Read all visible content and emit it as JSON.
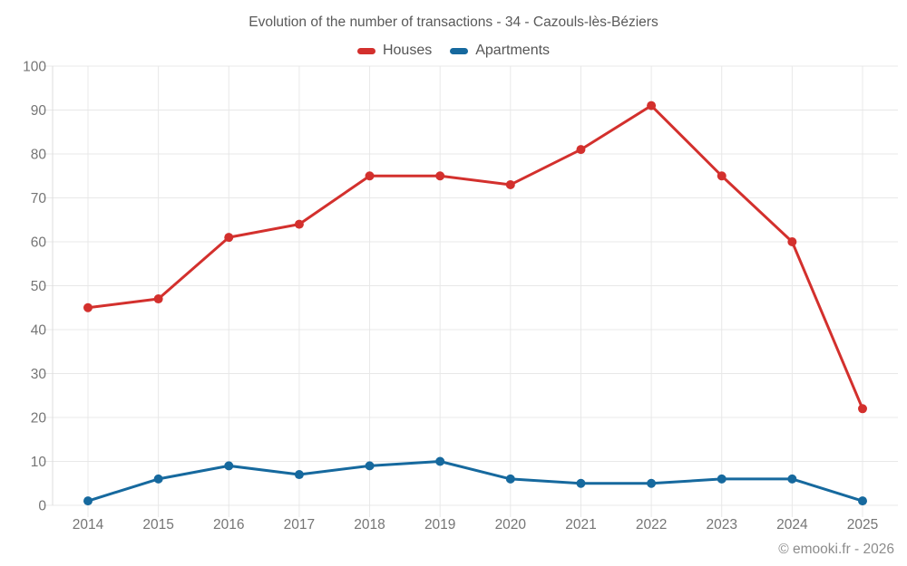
{
  "title": "Evolution of the number of transactions - 34 - Cazouls-lès-Béziers",
  "legend": {
    "items": [
      {
        "label": "Houses",
        "color": "#d3302d"
      },
      {
        "label": "Apartments",
        "color": "#16699e"
      }
    ]
  },
  "footer": {
    "copyright": "© emooki.fr - 2026"
  },
  "colors": {
    "background": "#ffffff",
    "grid": "#e8e8e8",
    "axis": "#dcdcdc",
    "tick_label": "#757575",
    "title_text": "#595959",
    "footer_text": "#8c8c8c",
    "houses": "#d3302d",
    "apartments": "#16699e"
  },
  "chart_data": {
    "type": "line",
    "title": "Evolution of the number of transactions - 34 - Cazouls-lès-Béziers",
    "categories": [
      "2014",
      "2015",
      "2016",
      "2017",
      "2018",
      "2019",
      "2020",
      "2021",
      "2022",
      "2023",
      "2024",
      "2025"
    ],
    "series": [
      {
        "name": "Houses",
        "color": "#d3302d",
        "values": [
          45,
          47,
          61,
          64,
          75,
          75,
          73,
          81,
          91,
          75,
          60,
          22
        ]
      },
      {
        "name": "Apartments",
        "color": "#16699e",
        "values": [
          1,
          6,
          9,
          7,
          9,
          10,
          6,
          5,
          5,
          6,
          6,
          1
        ]
      }
    ],
    "xlabel": "",
    "ylabel": "",
    "ylim": [
      0,
      100
    ],
    "ytick_step": 10,
    "grid": true,
    "legend_position": "top",
    "marker": "circle"
  }
}
